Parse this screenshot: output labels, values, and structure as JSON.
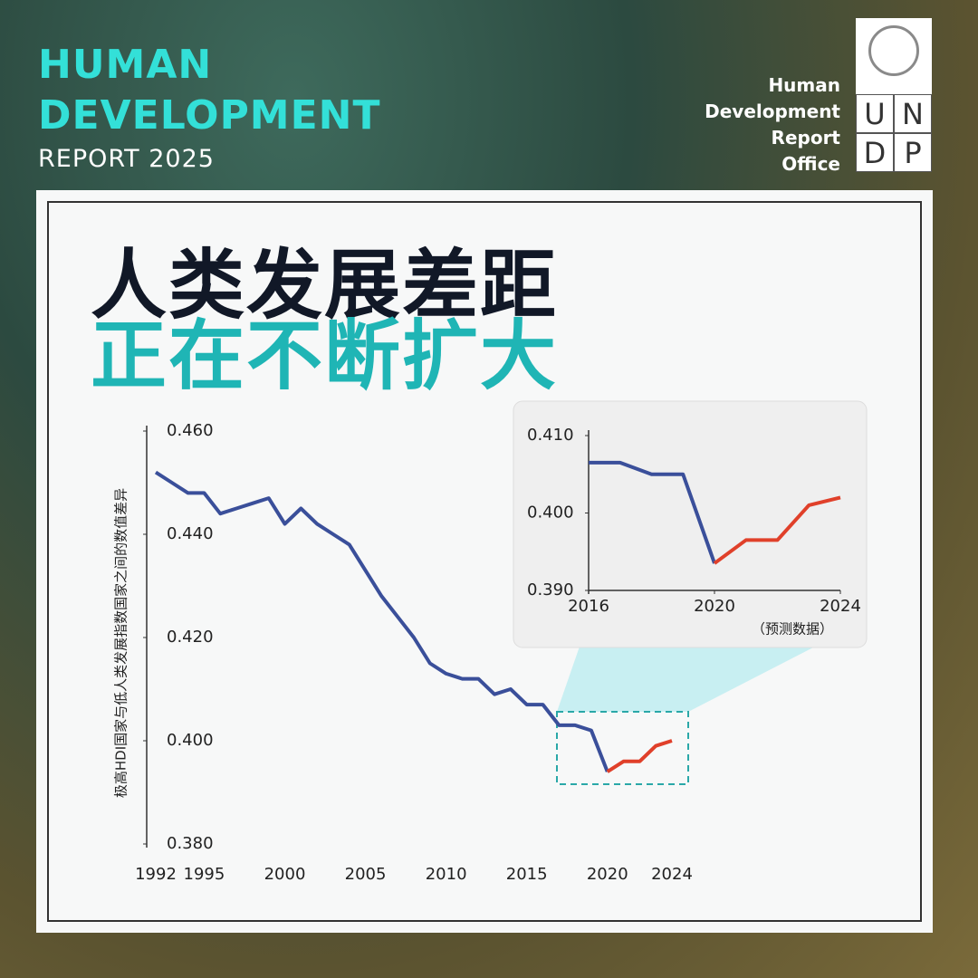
{
  "header": {
    "title_line1": "HUMAN",
    "title_line2": "DEVELOPMENT",
    "subtitle": "REPORT 2025",
    "office": [
      "Human",
      "Development",
      "Report",
      "Office"
    ],
    "logo": [
      "U",
      "N",
      "D",
      "P"
    ]
  },
  "headline": [
    "人类发展差距",
    "正在不断扩大"
  ],
  "chart_data": [
    {
      "type": "line",
      "y_label": "极高HDI国家与低人类发展指数国家之间的数值差异",
      "x": [
        1992,
        1993,
        1994,
        1995,
        1996,
        1997,
        1998,
        1999,
        2000,
        2001,
        2002,
        2003,
        2004,
        2005,
        2006,
        2007,
        2008,
        2009,
        2010,
        2011,
        2012,
        2013,
        2014,
        2015,
        2016,
        2017,
        2018,
        2019,
        2020,
        2021,
        2022,
        2023,
        2024
      ],
      "series": [
        {
          "color": "#3a4f9a",
          "values": [
            0.452,
            0.45,
            0.448,
            0.448,
            0.444,
            0.445,
            0.446,
            0.447,
            0.442,
            0.445,
            0.442,
            0.44,
            0.438,
            0.433,
            0.428,
            0.424,
            0.42,
            0.415,
            0.413,
            0.412,
            0.412,
            0.409,
            0.41,
            0.407,
            0.407,
            0.403,
            0.403,
            0.402,
            0.394,
            null,
            null,
            null,
            null
          ]
        },
        {
          "color": "#e0402a",
          "values": [
            null,
            null,
            null,
            null,
            null,
            null,
            null,
            null,
            null,
            null,
            null,
            null,
            null,
            null,
            null,
            null,
            null,
            null,
            null,
            null,
            null,
            null,
            null,
            null,
            null,
            null,
            null,
            null,
            0.394,
            0.396,
            0.396,
            0.399,
            0.4
          ]
        }
      ],
      "xlim": [
        1992,
        2024
      ],
      "ylim": [
        0.38,
        0.46
      ],
      "xticks": [
        1992,
        1995,
        2000,
        2005,
        2010,
        2015,
        2020,
        2024
      ],
      "yticks": [
        {
          "value": 0.46,
          "label": "0.460"
        },
        {
          "value": 0.44,
          "label": "0.440"
        },
        {
          "value": 0.42,
          "label": "0.420"
        },
        {
          "value": 0.4,
          "label": "0.400"
        },
        {
          "value": 0.38,
          "label": "0.380"
        }
      ]
    },
    {
      "type": "line",
      "annotation": "（预测数据）",
      "x": [
        2016,
        2017,
        2018,
        2019,
        2020,
        2021,
        2022,
        2023,
        2024
      ],
      "series": [
        {
          "color": "#3a4f9a",
          "values": [
            0.4065,
            0.4065,
            0.405,
            0.405,
            0.3935,
            null,
            null,
            null,
            null
          ]
        },
        {
          "color": "#e0402a",
          "values": [
            null,
            null,
            null,
            null,
            0.3935,
            0.3965,
            0.3965,
            0.401,
            0.402
          ]
        }
      ],
      "xlim": [
        2016,
        2024
      ],
      "ylim": [
        0.39,
        0.41
      ],
      "xticks": [
        2016,
        2020,
        2024
      ],
      "yticks": [
        {
          "value": 0.41,
          "label": "0.410"
        },
        {
          "value": 0.4,
          "label": "0.400"
        },
        {
          "value": 0.39,
          "label": "0.390"
        }
      ]
    }
  ]
}
